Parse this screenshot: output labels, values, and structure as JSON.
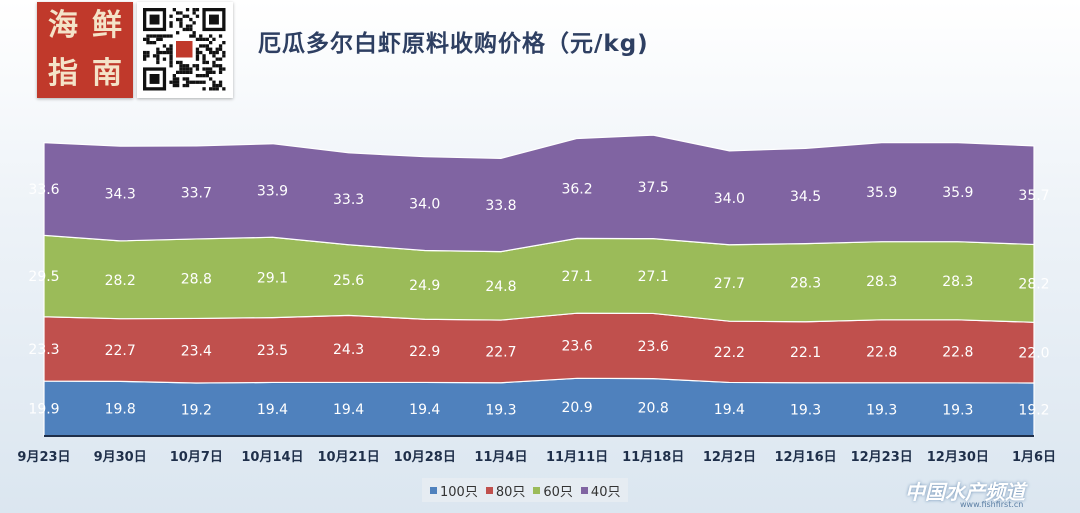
{
  "header": {
    "logo_chars": [
      "海",
      "鲜",
      "指",
      "南"
    ],
    "title": "厄瓜多尔白虾原料收购价格（元/kg)"
  },
  "watermark": {
    "text": "中国水产频道",
    "sub": "www.fishfirst.cn"
  },
  "colors": {
    "100只": "#4f81bd",
    "80只": "#c0504d",
    "60只": "#9bbb59",
    "40只": "#8064a2"
  },
  "chart_data": {
    "type": "area",
    "stacked": true,
    "title": "厄瓜多尔白虾原料收购价格（元/kg)",
    "categories": [
      "9月23日",
      "9月30日",
      "10月7日",
      "10月14日",
      "10月21日",
      "10月28日",
      "11月4日",
      "11月11日",
      "11月18日",
      "12月2日",
      "12月16日",
      "12月23日",
      "12月30日",
      "1月6日"
    ],
    "series": [
      {
        "name": "100只",
        "values": [
          19.9,
          19.8,
          19.2,
          19.4,
          19.4,
          19.4,
          19.3,
          20.9,
          20.8,
          19.4,
          19.3,
          19.3,
          19.3,
          19.2
        ]
      },
      {
        "name": "80只",
        "values": [
          23.3,
          22.7,
          23.4,
          23.5,
          24.3,
          22.9,
          22.7,
          23.6,
          23.6,
          22.2,
          22.1,
          22.8,
          22.8,
          22.0
        ]
      },
      {
        "name": "60只",
        "values": [
          29.5,
          28.2,
          28.8,
          29.1,
          25.6,
          24.9,
          24.8,
          27.1,
          27.1,
          27.7,
          28.3,
          28.3,
          28.3,
          28.2
        ]
      },
      {
        "name": "40只",
        "values": [
          33.6,
          34.3,
          33.7,
          33.9,
          33.3,
          34.0,
          33.8,
          36.2,
          37.5,
          34.0,
          34.5,
          35.9,
          35.9,
          35.7
        ]
      }
    ],
    "legend_position": "bottom",
    "grid": false
  }
}
